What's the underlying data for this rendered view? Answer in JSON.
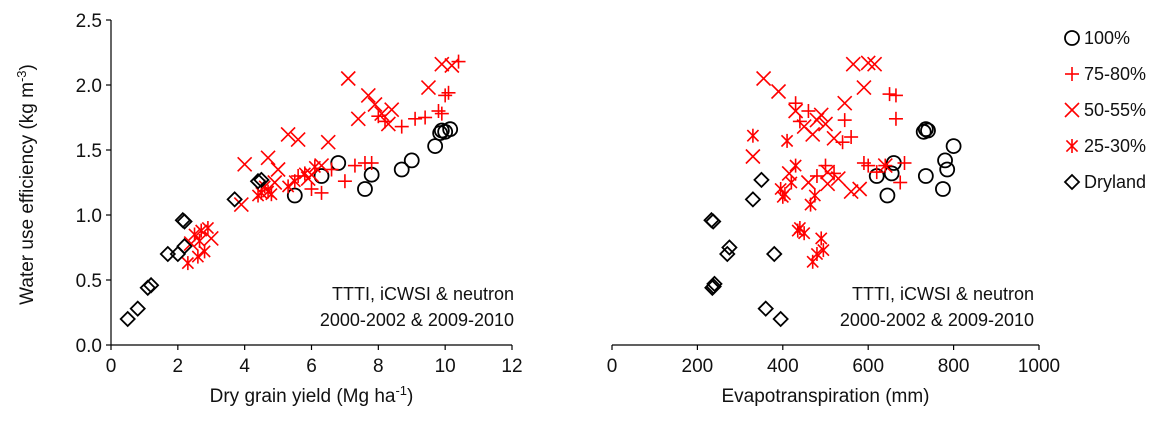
{
  "chart_data": [
    {
      "type": "scatter",
      "xlabel": "Dry grain yield (Mg ha",
      "xlabel_sup": "-1",
      "xlabel_end": ")",
      "ylabel": "Water use efficiency (kg m",
      "ylabel_sup": "-3",
      "ylabel_end": ")",
      "xlim": [
        0,
        12
      ],
      "ylim": [
        0,
        2.5
      ],
      "xticks": [
        "0",
        "2",
        "4",
        "6",
        "8",
        "10",
        "12"
      ],
      "yticks": [
        "0.0",
        "0.5",
        "1.0",
        "1.5",
        "2.0",
        "2.5"
      ],
      "annotation": [
        "TTTI, iCWSI & neutron",
        "2000-2002 & 2009-2010"
      ],
      "series": [
        {
          "name": "100%",
          "marker": "circle",
          "color": "#000000",
          "points": [
            [
              5.5,
              1.15
            ],
            [
              6.3,
              1.3
            ],
            [
              6.8,
              1.4
            ],
            [
              7.6,
              1.2
            ],
            [
              7.8,
              1.31
            ],
            [
              8.7,
              1.35
            ],
            [
              9.0,
              1.42
            ],
            [
              9.7,
              1.53
            ],
            [
              9.9,
              1.65
            ],
            [
              9.85,
              1.63
            ],
            [
              10.0,
              1.64
            ],
            [
              10.15,
              1.66
            ]
          ]
        },
        {
          "name": "75-80%",
          "marker": "plus",
          "color": "#ff0000",
          "points": [
            [
              5.6,
              1.3
            ],
            [
              6.0,
              1.2
            ],
            [
              6.3,
              1.17
            ],
            [
              6.6,
              1.35
            ],
            [
              7.0,
              1.26
            ],
            [
              7.3,
              1.38
            ],
            [
              7.6,
              1.4
            ],
            [
              7.8,
              1.4
            ],
            [
              8.0,
              1.76
            ],
            [
              8.2,
              1.72
            ],
            [
              8.7,
              1.68
            ],
            [
              9.1,
              1.74
            ],
            [
              9.4,
              1.75
            ],
            [
              9.8,
              1.8
            ],
            [
              10.0,
              1.92
            ],
            [
              10.1,
              1.94
            ],
            [
              10.4,
              2.18
            ],
            [
              9.9,
              1.78
            ]
          ]
        },
        {
          "name": "50-55%",
          "marker": "x",
          "color": "#ff0000",
          "points": [
            [
              2.4,
              0.78
            ],
            [
              3.0,
              0.82
            ],
            [
              3.9,
              1.08
            ],
            [
              4.0,
              1.39
            ],
            [
              4.7,
              1.44
            ],
            [
              5.0,
              1.35
            ],
            [
              5.3,
              1.62
            ],
            [
              5.6,
              1.58
            ],
            [
              6.0,
              1.31
            ],
            [
              6.3,
              1.38
            ],
            [
              6.5,
              1.56
            ],
            [
              7.1,
              2.05
            ],
            [
              7.4,
              1.74
            ],
            [
              7.7,
              1.92
            ],
            [
              7.9,
              1.85
            ],
            [
              8.1,
              1.78
            ],
            [
              8.3,
              1.7
            ],
            [
              8.4,
              1.81
            ],
            [
              9.5,
              1.98
            ],
            [
              9.9,
              2.16
            ],
            [
              10.2,
              2.15
            ],
            [
              5.9,
              1.28
            ],
            [
              4.9,
              1.25
            ]
          ]
        },
        {
          "name": "25-30%",
          "marker": "asterisk",
          "color": "#ff0000",
          "points": [
            [
              2.3,
              0.63
            ],
            [
              2.5,
              0.85
            ],
            [
              2.6,
              0.68
            ],
            [
              2.7,
              0.88
            ],
            [
              2.8,
              0.72
            ],
            [
              2.9,
              0.9
            ],
            [
              4.4,
              1.15
            ],
            [
              4.5,
              1.17
            ],
            [
              4.6,
              1.22
            ],
            [
              4.7,
              1.18
            ],
            [
              4.8,
              1.16
            ],
            [
              5.3,
              1.22
            ],
            [
              5.5,
              1.26
            ],
            [
              5.8,
              1.32
            ],
            [
              6.1,
              1.37
            ],
            [
              2.65,
              0.8
            ]
          ]
        },
        {
          "name": "Dryland",
          "marker": "diamond",
          "color": "#000000",
          "points": [
            [
              0.5,
              0.2
            ],
            [
              0.8,
              0.28
            ],
            [
              1.1,
              0.44
            ],
            [
              1.2,
              0.46
            ],
            [
              1.7,
              0.7
            ],
            [
              2.0,
              0.7
            ],
            [
              2.2,
              0.76
            ],
            [
              2.15,
              0.96
            ],
            [
              2.2,
              0.95
            ],
            [
              3.7,
              1.12
            ],
            [
              4.4,
              1.26
            ],
            [
              4.5,
              1.27
            ]
          ]
        }
      ]
    },
    {
      "type": "scatter",
      "xlabel": "Evapotranspiration (mm)",
      "ylabel": "",
      "xlim": [
        0,
        1000
      ],
      "ylim": [
        0,
        2.5
      ],
      "xticks": [
        "0",
        "200",
        "400",
        "600",
        "800",
        "1000"
      ],
      "annotation": [
        "TTTI, iCWSI & neutron",
        "2000-2002 & 2009-2010"
      ],
      "legend_position": "right",
      "series": [
        {
          "name": "100%",
          "marker": "circle",
          "color": "#000000",
          "points": [
            [
              620,
              1.3
            ],
            [
              645,
              1.15
            ],
            [
              655,
              1.32
            ],
            [
              660,
              1.4
            ],
            [
              730,
              1.64
            ],
            [
              735,
              1.66
            ],
            [
              740,
              1.65
            ],
            [
              735,
              1.3
            ],
            [
              775,
              1.2
            ],
            [
              780,
              1.42
            ],
            [
              785,
              1.35
            ],
            [
              800,
              1.53
            ]
          ]
        },
        {
          "name": "75-80%",
          "marker": "plus",
          "color": "#ff0000",
          "points": [
            [
              430,
              1.86
            ],
            [
              440,
              1.72
            ],
            [
              460,
              1.8
            ],
            [
              480,
              1.3
            ],
            [
              500,
              1.38
            ],
            [
              540,
              1.56
            ],
            [
              545,
              1.73
            ],
            [
              560,
              1.6
            ],
            [
              590,
              1.4
            ],
            [
              600,
              1.38
            ],
            [
              620,
              1.33
            ],
            [
              640,
              1.38
            ],
            [
              650,
              1.93
            ],
            [
              665,
              1.92
            ],
            [
              665,
              1.74
            ],
            [
              675,
              1.25
            ],
            [
              685,
              1.4
            ],
            [
              520,
              1.32
            ]
          ]
        },
        {
          "name": "50-55%",
          "marker": "x",
          "color": "#ff0000",
          "points": [
            [
              330,
              1.45
            ],
            [
              355,
              2.05
            ],
            [
              390,
              1.95
            ],
            [
              415,
              1.32
            ],
            [
              430,
              1.8
            ],
            [
              450,
              1.68
            ],
            [
              460,
              1.25
            ],
            [
              470,
              1.62
            ],
            [
              480,
              1.73
            ],
            [
              490,
              1.77
            ],
            [
              500,
              1.7
            ],
            [
              505,
              1.24
            ],
            [
              520,
              1.59
            ],
            [
              530,
              1.28
            ],
            [
              545,
              1.86
            ],
            [
              560,
              1.18
            ],
            [
              565,
              2.16
            ],
            [
              580,
              1.2
            ],
            [
              590,
              1.98
            ],
            [
              600,
              2.17
            ],
            [
              615,
              2.16
            ],
            [
              640,
              1.38
            ],
            [
              505,
              1.33
            ]
          ]
        },
        {
          "name": "25-30%",
          "marker": "asterisk",
          "color": "#ff0000",
          "points": [
            [
              330,
              1.61
            ],
            [
              395,
              1.2
            ],
            [
              400,
              1.14
            ],
            [
              405,
              1.16
            ],
            [
              410,
              1.57
            ],
            [
              420,
              1.25
            ],
            [
              430,
              1.38
            ],
            [
              435,
              0.88
            ],
            [
              440,
              0.9
            ],
            [
              450,
              0.86
            ],
            [
              465,
              1.08
            ],
            [
              470,
              0.64
            ],
            [
              480,
              0.7
            ],
            [
              490,
              0.82
            ],
            [
              495,
              0.73
            ],
            [
              475,
              1.15
            ]
          ]
        },
        {
          "name": "Dryland",
          "marker": "diamond",
          "color": "#000000",
          "points": [
            [
              233,
              0.96
            ],
            [
              237,
              0.95
            ],
            [
              238,
              0.45
            ],
            [
              240,
              0.47
            ],
            [
              270,
              0.7
            ],
            [
              275,
              0.75
            ],
            [
              330,
              1.12
            ],
            [
              350,
              1.27
            ],
            [
              360,
              0.28
            ],
            [
              380,
              0.7
            ],
            [
              395,
              0.2
            ],
            [
              235,
              0.44
            ]
          ]
        }
      ]
    }
  ]
}
